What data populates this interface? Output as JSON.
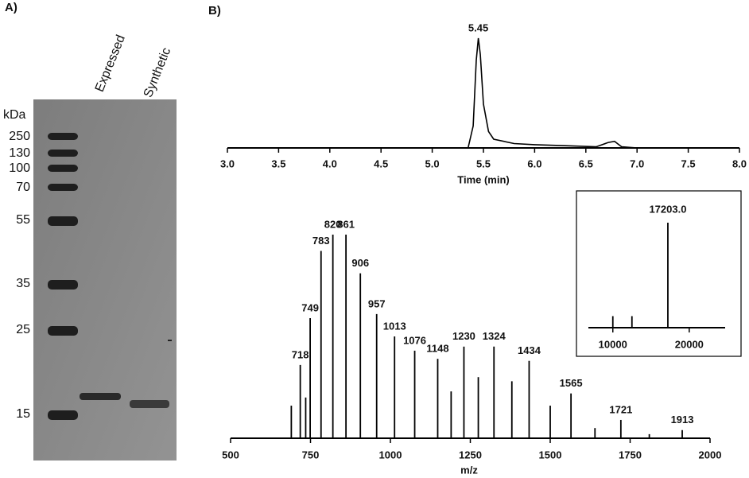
{
  "gel": {
    "panel_label": "A)",
    "unit": "kDa",
    "markers": [
      250,
      130,
      100,
      70,
      55,
      35,
      25,
      15
    ],
    "lanes": [
      "Expressed",
      "Synthetic"
    ]
  },
  "panel_b_label": "B)",
  "chart_data": [
    {
      "type": "line",
      "xlabel": "Time (min)",
      "x": [
        3.0,
        5.35,
        5.4,
        5.43,
        5.45,
        5.47,
        5.5,
        5.55,
        5.6,
        5.8,
        6.0,
        6.3,
        6.6,
        6.72,
        6.78,
        6.85,
        7.0,
        8.0
      ],
      "values": [
        0,
        0,
        20,
        80,
        100,
        85,
        40,
        15,
        8,
        4,
        3,
        2,
        1,
        5,
        6,
        1,
        0,
        0
      ],
      "color": "#000000",
      "xlim": [
        3.0,
        8.0
      ],
      "ylim": [
        0,
        100
      ],
      "xticks": [
        {
          "value": 3,
          "label": "3.0"
        },
        {
          "value": 3.5,
          "label": "3.5"
        },
        {
          "value": 4,
          "label": "4.0"
        },
        {
          "value": 4.5,
          "label": "4.5"
        },
        {
          "value": 5,
          "label": "5.0"
        },
        {
          "value": 5.5,
          "label": "5.5"
        },
        {
          "value": 6,
          "label": "6.0"
        },
        {
          "value": 6.5,
          "label": "6.5"
        },
        {
          "value": 7,
          "label": "7.0"
        },
        {
          "value": 7.5,
          "label": "7.5"
        },
        {
          "value": 8,
          "label": "8.0"
        }
      ],
      "peak_labels": [
        5.45
      ]
    },
    {
      "type": "stem",
      "xlabel": "m/z",
      "series": [
        {
          "x": [
            718,
            749,
            783,
            820,
            861,
            906,
            957,
            1013,
            1076,
            1148,
            1230,
            1324,
            1434,
            1565,
            1721,
            1913
          ],
          "values": [
            36,
            59,
            92,
            100,
            100,
            81,
            61,
            50,
            43,
            39,
            45,
            45,
            38,
            22,
            9,
            4
          ],
          "color": "#000000",
          "labeled": true
        },
        {
          "x": [
            690,
            735,
            1190,
            1275,
            1380,
            1500,
            1640,
            1810
          ],
          "values": [
            16,
            20,
            23,
            30,
            28,
            16,
            5,
            2
          ],
          "color": "#000000",
          "labeled": false
        }
      ],
      "xlim": [
        500,
        2000
      ],
      "ylim": [
        0,
        100
      ],
      "xticks": [
        500,
        750,
        1000,
        1250,
        1500,
        1750,
        2000
      ]
    },
    {
      "type": "stem",
      "series": [
        {
          "x": [
            10000,
            12500,
            17203
          ],
          "values": [
            11,
            11,
            100
          ],
          "color": "#000000",
          "labeled": false
        }
      ],
      "xlim": [
        6800,
        24700
      ],
      "ylim": [
        0,
        100
      ],
      "xticks": [
        10000,
        20000
      ],
      "peak_label": {
        "value": 17203,
        "label": "17203.0"
      }
    }
  ]
}
